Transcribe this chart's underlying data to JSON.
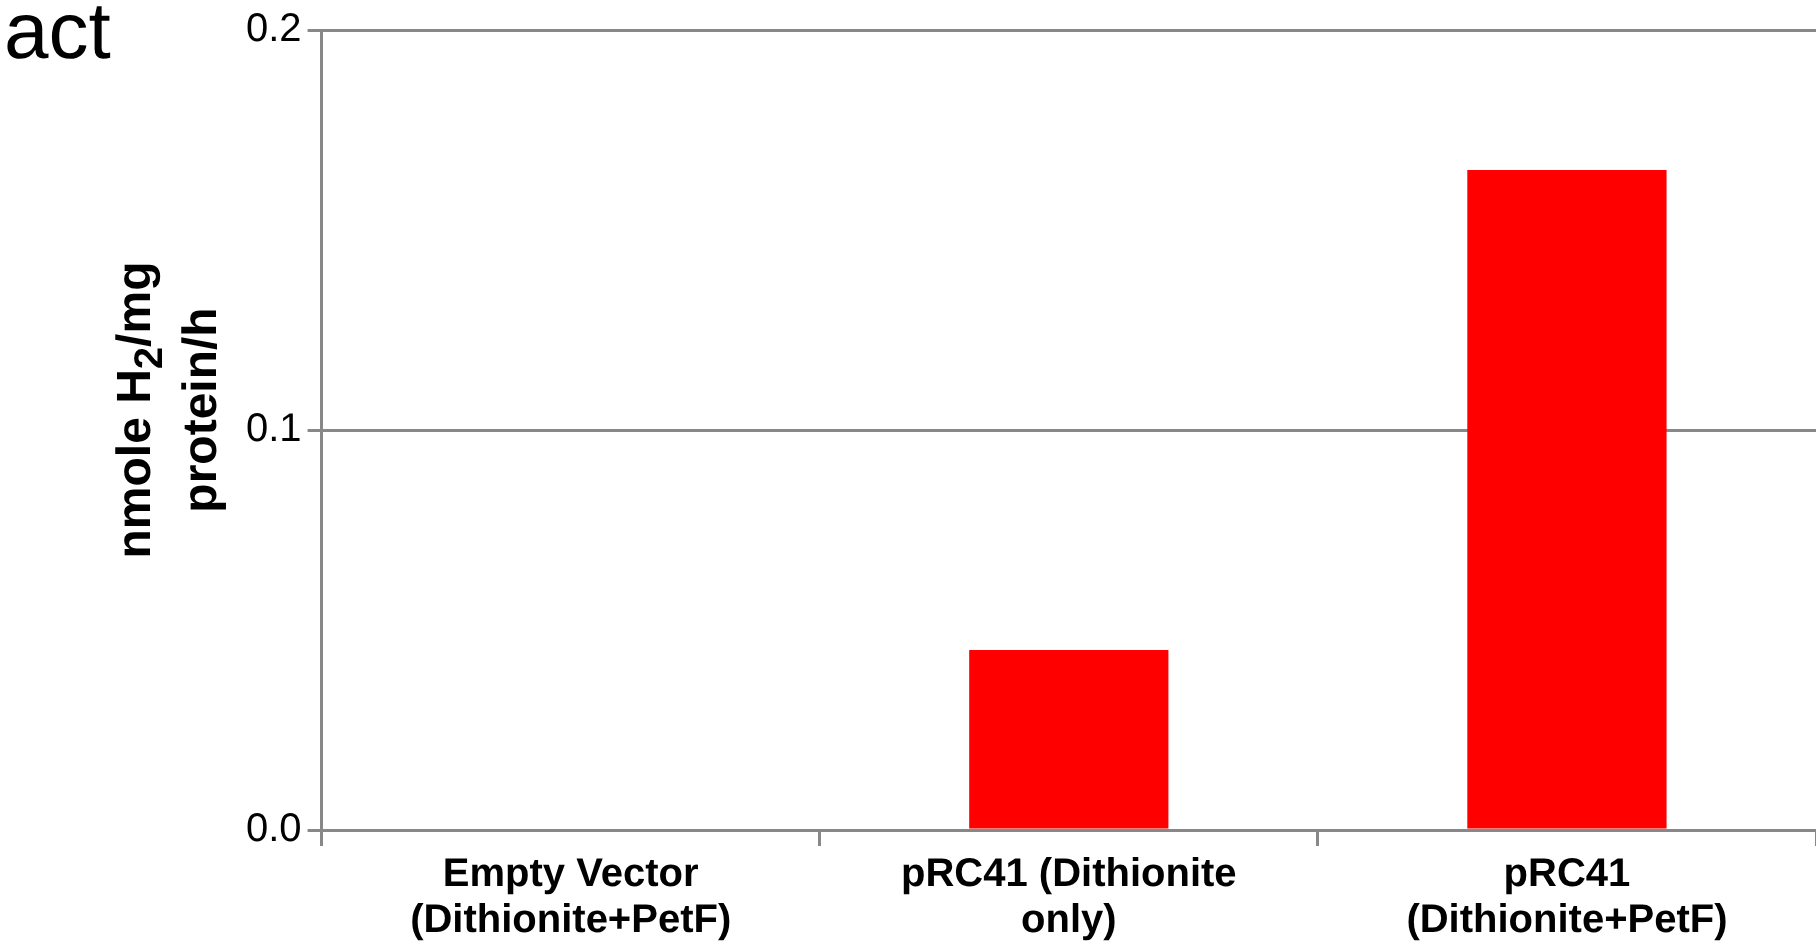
{
  "chart_data": {
    "type": "bar",
    "annotations": [
      "act"
    ],
    "ylabel": "nmole H$_{2}$/mg protein/h",
    "categories": [
      "Empty Vector (Dithionite+PetF)",
      "pRC41 (Dithionite only)",
      "pRC41 (Dithionite+PetF)"
    ],
    "values": [
      0,
      0.045,
      0.165
    ],
    "color": "#ff0000",
    "ylim": [
      0,
      0.2
    ],
    "yticks": [
      {
        "value": 0,
        "label": "0.0"
      },
      {
        "value": 0.1,
        "label": "0.1"
      },
      {
        "value": 0.2,
        "label": "0.2"
      }
    ],
    "grid": "y"
  }
}
